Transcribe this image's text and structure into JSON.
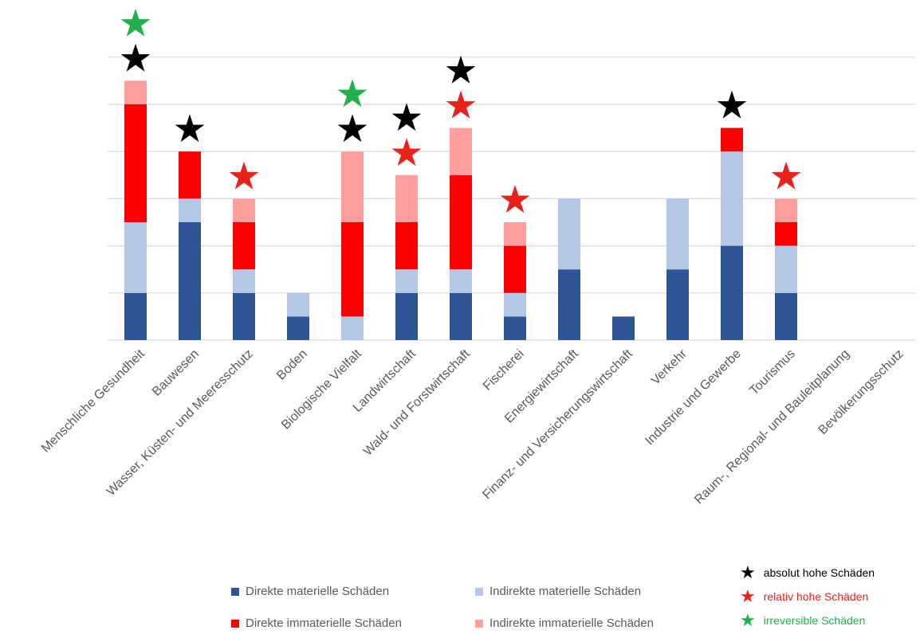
{
  "chart_data": {
    "type": "bar",
    "stacked": true,
    "categories": [
      "Menschliche Gesundheit",
      "Bauwesen",
      "Wasser, Küsten- und Meeresschutz",
      "Boden",
      "Biologische Vielfalt",
      "Landwirtschaft",
      "Wald- und Forstwirtschaft",
      "Fischerei",
      "Energiewirtschaft",
      "Finanz- und Versicherungswirtschaft",
      "Verkehr",
      "Industrie und Gewerbe",
      "Tourismus",
      "Raum-, Regional- und Bauleitplanung",
      "Bevölkerungsschutz"
    ],
    "series": [
      {
        "name": "Direkte materielle Schäden",
        "color": "#2f5597",
        "values": [
          2,
          5,
          2,
          1,
          0,
          2,
          2,
          1,
          3,
          1,
          3,
          4,
          2,
          0,
          0
        ]
      },
      {
        "name": "Indirekte materielle Schäden",
        "color": "#b4c7e7",
        "values": [
          3,
          1,
          1,
          1,
          1,
          1,
          1,
          1,
          3,
          0,
          3,
          4,
          2,
          0,
          0
        ]
      },
      {
        "name": "Direkte immaterielle Schäden",
        "color": "#ff0000",
        "values": [
          5,
          2,
          2,
          0,
          4,
          2,
          4,
          2,
          0,
          0,
          0,
          1,
          1,
          0,
          0
        ]
      },
      {
        "name": "Indirekte immaterielle Schäden",
        "color": "#ff9f9f",
        "values": [
          1,
          0,
          1,
          0,
          3,
          2,
          2,
          1,
          0,
          0,
          0,
          0,
          1,
          0,
          0
        ]
      }
    ],
    "markers": {
      "absolut": [
        0,
        1,
        4,
        5,
        6,
        11
      ],
      "relativ": [
        2,
        5,
        6,
        7,
        12
      ],
      "irreversibel": [
        0,
        4
      ]
    },
    "ylim": [
      0,
      12
    ],
    "grid": true,
    "legend": "bottom"
  },
  "legend": {
    "bars": [
      {
        "label": "Direkte materielle Schäden",
        "color": "#2f5597"
      },
      {
        "label": "Indirekte materielle Schäden",
        "color": "#b4c7e7"
      },
      {
        "label": "Direkte immaterielle Schäden",
        "color": "#ff0000"
      },
      {
        "label": "Indirekte immaterielle Schäden",
        "color": "#ff9f9f"
      }
    ],
    "stars": [
      {
        "label": "absolut hohe Schäden",
        "color": "#000000",
        "text_color": "#000000",
        "icon": "star-icon"
      },
      {
        "label": "relativ hohe Schäden",
        "color": "#e8221b",
        "text_color": "#e8221b",
        "icon": "star-icon"
      },
      {
        "label": "irreversible Schäden",
        "color": "#21b04b",
        "text_color": "#21b04b",
        "icon": "star-icon"
      }
    ]
  }
}
